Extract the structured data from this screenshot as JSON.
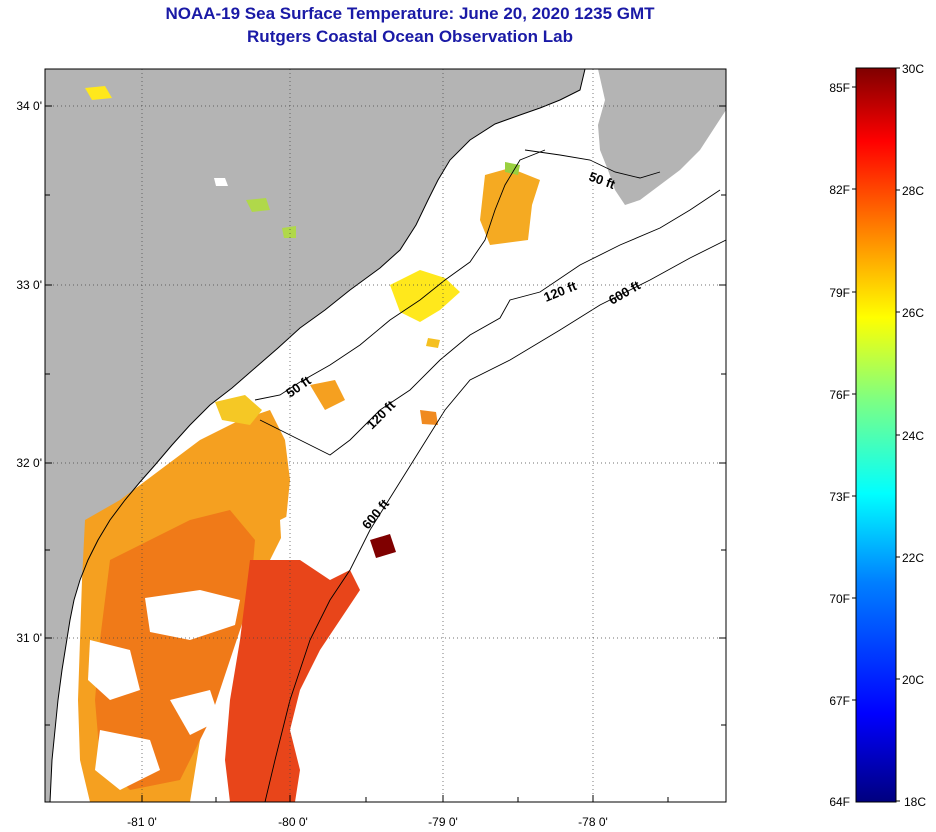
{
  "header": {
    "title": "NOAA-19 Sea Surface Temperature:  June 20, 2020 1235 GMT",
    "subtitle": "Rutgers Coastal Ocean Observation Lab"
  },
  "map": {
    "lat_labels": [
      "34 0'",
      "33 0'",
      "32 0'",
      "31 0'"
    ],
    "lon_labels": [
      "-81 0'",
      "-80 0'",
      "-79 0'",
      "-78 0'"
    ],
    "land_color": "#b4b4b4",
    "ocean_no_data_color": "#ffffff",
    "isobath_labels": [
      "50 ft",
      "50 ft",
      "120 ft",
      "120 ft",
      "600 ft",
      "600 ft"
    ]
  },
  "colorbar": {
    "fahrenheit_labels": [
      "85F",
      "82F",
      "79F",
      "76F",
      "73F",
      "70F",
      "67F",
      "64F"
    ],
    "celsius_labels": [
      "30C",
      "28C",
      "26C",
      "24C",
      "22C",
      "20C",
      "18C"
    ],
    "range_celsius": [
      18,
      30
    ],
    "colors": [
      "#00007f",
      "#0000ff",
      "#0080ff",
      "#00ffff",
      "#80ff80",
      "#ffff00",
      "#ff8000",
      "#ff0000",
      "#7f0000"
    ]
  }
}
